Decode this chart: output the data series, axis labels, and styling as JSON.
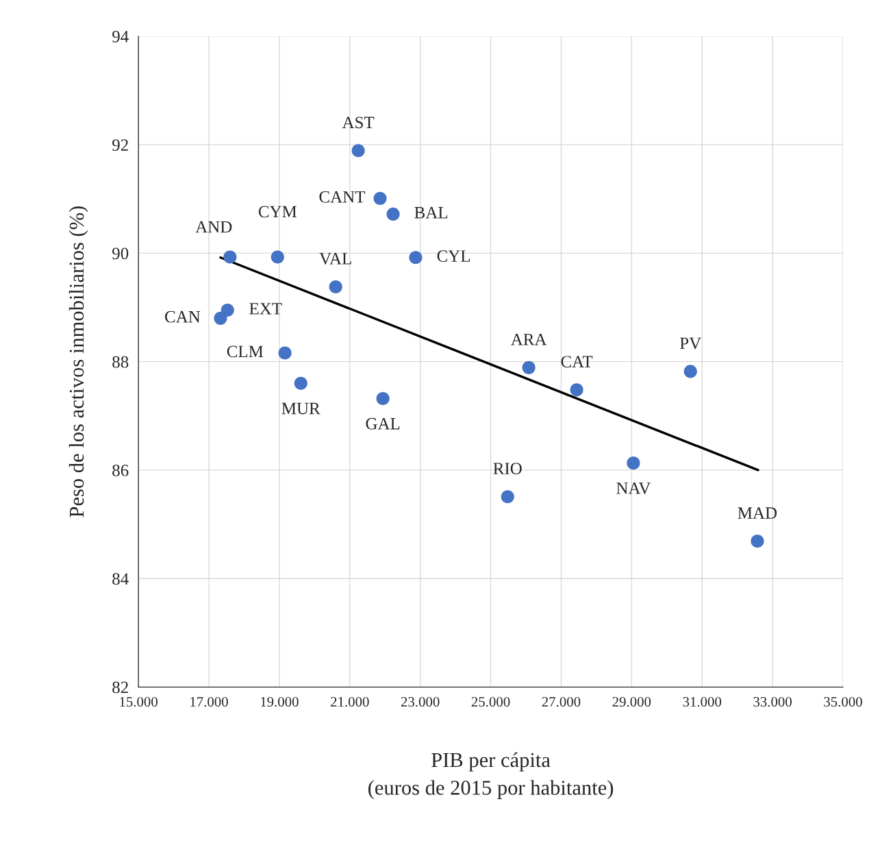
{
  "chart_data": {
    "type": "scatter",
    "xlabel": "PIB per cápita\n(euros de 2015 por habitante)",
    "ylabel": "Peso de los activos inmobiliarios (%)",
    "series": [
      {
        "color": "#4472c4",
        "marker": "circle",
        "x": [
          21240,
          21860,
          22230,
          18950,
          17600,
          22870,
          20600,
          17530,
          17330,
          19160,
          19610,
          21940,
          26080,
          27440,
          30670,
          25480,
          29050,
          32570
        ],
        "values": [
          91.89,
          91.01,
          90.72,
          89.93,
          89.93,
          89.92,
          89.38,
          88.95,
          88.8,
          88.16,
          87.6,
          87.32,
          87.89,
          87.48,
          87.82,
          85.51,
          86.13,
          84.69
        ]
      },
      {
        "type": "line",
        "color": "#000000",
        "x": [
          17330,
          32590
        ],
        "values": [
          89.92,
          86.0
        ]
      }
    ],
    "annotations": [
      {
        "text": "AST",
        "x": 21240,
        "y": 91.89
      },
      {
        "text": "CANT",
        "x": 21860,
        "y": 91.01
      },
      {
        "text": "BAL",
        "x": 22230,
        "y": 90.72
      },
      {
        "text": "CYM",
        "x": 18950,
        "y": 89.93
      },
      {
        "text": "AND",
        "x": 17600,
        "y": 89.93
      },
      {
        "text": "CYL",
        "x": 22870,
        "y": 89.92
      },
      {
        "text": "VAL",
        "x": 20600,
        "y": 89.38
      },
      {
        "text": "EXT",
        "x": 17530,
        "y": 88.95
      },
      {
        "text": "CAN",
        "x": 17330,
        "y": 88.8
      },
      {
        "text": "CLM",
        "x": 19160,
        "y": 88.16
      },
      {
        "text": "MUR",
        "x": 19610,
        "y": 87.6
      },
      {
        "text": "GAL",
        "x": 21940,
        "y": 87.32
      },
      {
        "text": "ARA",
        "x": 26080,
        "y": 87.89
      },
      {
        "text": "CAT",
        "x": 27440,
        "y": 87.48
      },
      {
        "text": "PV",
        "x": 30670,
        "y": 87.82
      },
      {
        "text": "RIO",
        "x": 25480,
        "y": 85.51
      },
      {
        "text": "NAV",
        "x": 29050,
        "y": 86.13
      },
      {
        "text": "MAD",
        "x": 32570,
        "y": 84.69
      }
    ],
    "xlim": [
      15000,
      35000
    ],
    "xticks": [
      {
        "value": 15000,
        "label": "15.000"
      },
      {
        "value": 17000,
        "label": "17.000"
      },
      {
        "value": 19000,
        "label": "19.000"
      },
      {
        "value": 21000,
        "label": "21.000"
      },
      {
        "value": 23000,
        "label": "23.000"
      },
      {
        "value": 25000,
        "label": "25.000"
      },
      {
        "value": 27000,
        "label": "27.000"
      },
      {
        "value": 29000,
        "label": "29.000"
      },
      {
        "value": 31000,
        "label": "31.000"
      },
      {
        "value": 33000,
        "label": "33.000"
      },
      {
        "value": 35000,
        "label": "35.000"
      }
    ],
    "ylim": [
      82,
      94
    ],
    "yticks": [
      82,
      84,
      86,
      88,
      90,
      92,
      94
    ],
    "grid": true
  }
}
